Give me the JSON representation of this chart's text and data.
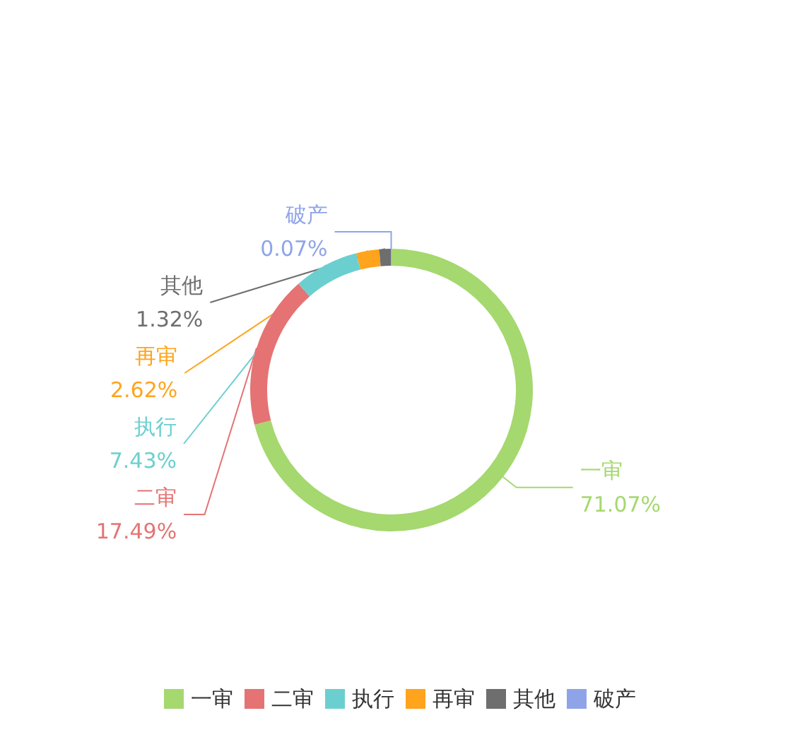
{
  "chart_data": {
    "type": "donut",
    "categories": [
      "一审",
      "二审",
      "执行",
      "再审",
      "其他",
      "破产"
    ],
    "values": [
      71.07,
      17.49,
      7.43,
      2.62,
      1.32,
      0.07
    ],
    "colors": [
      "#a5d86e",
      "#e57373",
      "#6ccfcf",
      "#ffa41c",
      "#6e6e6e",
      "#8fa4e8"
    ],
    "value_labels": [
      "71.07%",
      "17.49%",
      "7.43%",
      "2.62%",
      "1.32%",
      "0.07%"
    ],
    "legend": "bottom"
  }
}
